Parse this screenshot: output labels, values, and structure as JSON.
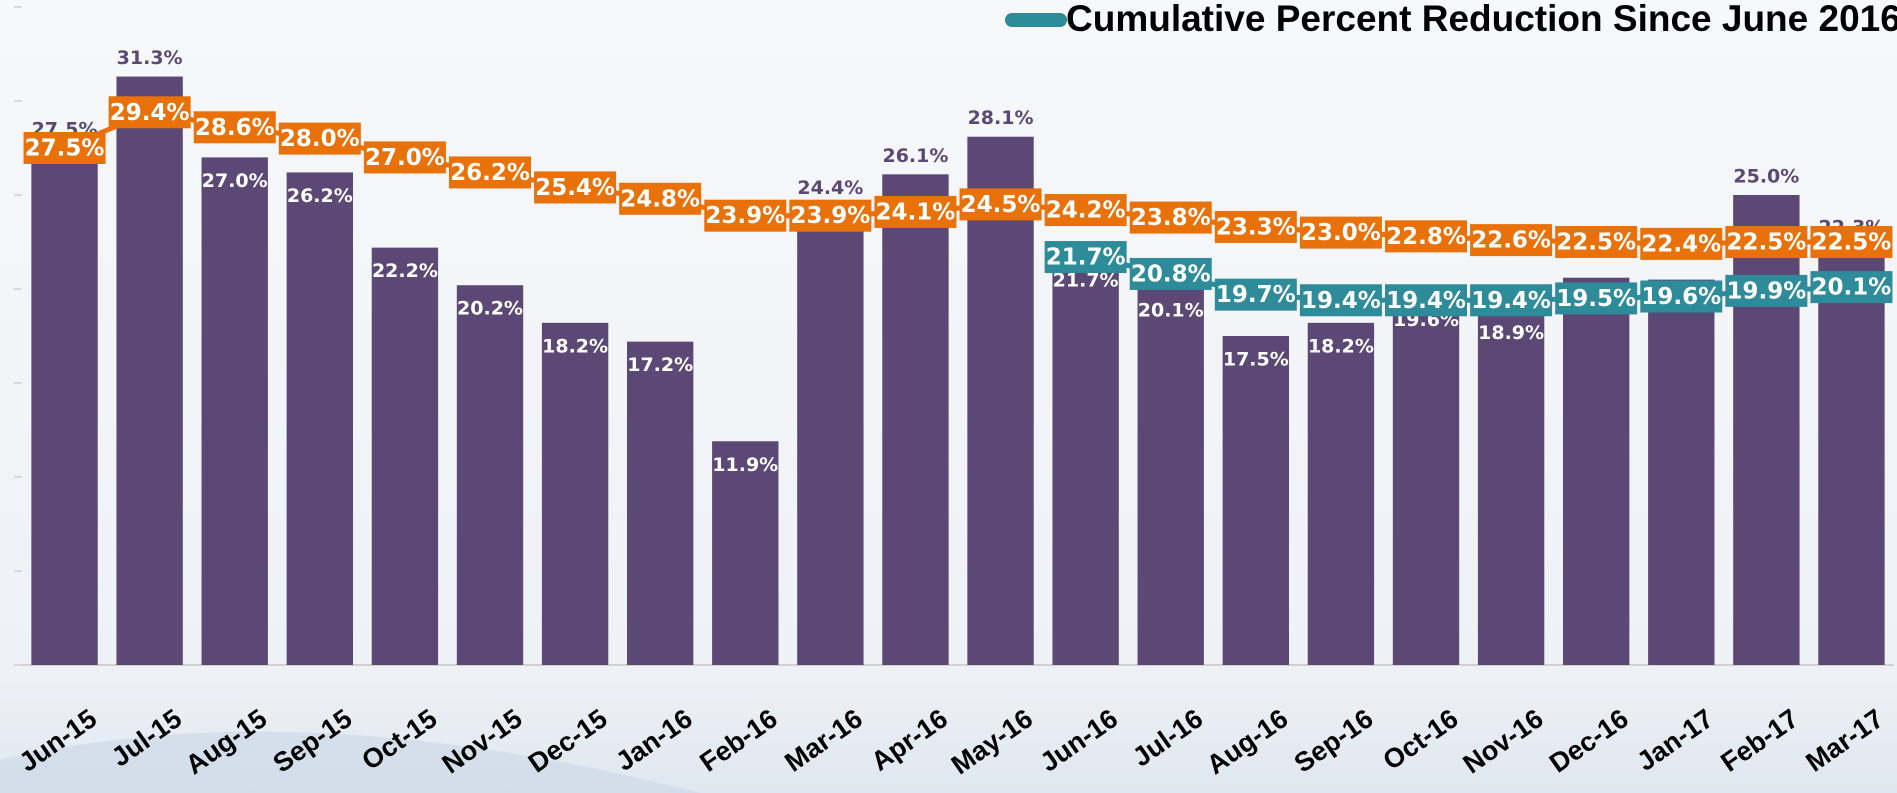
{
  "chart_data": {
    "type": "bar",
    "categories": [
      "Jun-15",
      "Jul-15",
      "Aug-15",
      "Sep-15",
      "Oct-15",
      "Nov-15",
      "Dec-15",
      "Jan-16",
      "Feb-16",
      "Mar-16",
      "Apr-16",
      "May-16",
      "Jun-16",
      "Jul-16",
      "Aug-16",
      "Sep-16",
      "Oct-16",
      "Nov-16",
      "Dec-16",
      "Jan-17",
      "Feb-17",
      "Mar-17"
    ],
    "values": [
      27.5,
      31.3,
      27.0,
      26.2,
      22.2,
      20.2,
      18.2,
      17.2,
      11.9,
      24.4,
      26.1,
      28.1,
      21.7,
      20.1,
      17.5,
      18.2,
      19.6,
      18.9,
      20.6,
      20.5,
      25.0,
      22.3
    ],
    "value_labels": [
      "27.5%",
      "31.3%",
      "27.0%",
      "26.2%",
      "22.2%",
      "20.2%",
      "18.2%",
      "17.2%",
      "11.9%",
      "24.4%",
      "26.1%",
      "28.1%",
      "21.7%",
      "20.1%",
      "17.5%",
      "18.2%",
      "19.6%",
      "18.9%",
      "20.6%",
      "20.5%",
      "25.0%",
      "22.3%"
    ],
    "color": "#5b4874",
    "lines": [
      {
        "color": "#e8710a",
        "values": [
          27.5,
          29.4,
          28.6,
          28.0,
          27.0,
          26.2,
          25.4,
          24.8,
          23.9,
          23.9,
          24.1,
          24.5,
          24.2,
          23.8,
          23.3,
          23.0,
          22.8,
          22.6,
          22.5,
          22.4,
          22.5,
          22.5
        ],
        "value_labels": [
          "27.5%",
          "29.4%",
          "28.6%",
          "28.0%",
          "27.0%",
          "26.2%",
          "25.4%",
          "24.8%",
          "23.9%",
          "23.9%",
          "24.1%",
          "24.5%",
          "24.2%",
          "23.8%",
          "23.3%",
          "23.0%",
          "22.8%",
          "22.6%",
          "22.5%",
          "22.4%",
          "22.5%",
          "22.5%"
        ]
      },
      {
        "name": "Cumulative Percent Reduction Since June 2016",
        "color": "#2e8b9a",
        "values": [
          null,
          null,
          null,
          null,
          null,
          null,
          null,
          null,
          null,
          null,
          null,
          null,
          21.7,
          20.8,
          19.7,
          19.4,
          19.4,
          19.4,
          19.5,
          19.6,
          19.9,
          20.1
        ],
        "value_labels": [
          null,
          null,
          null,
          null,
          null,
          null,
          null,
          null,
          null,
          null,
          null,
          null,
          "21.7%",
          "20.8%",
          "19.7%",
          "19.4%",
          "19.4%",
          "19.4%",
          "19.5%",
          "19.6%",
          "19.9%",
          "20.1%"
        ]
      }
    ],
    "ylim": [
      0,
      35
    ],
    "yticks": [
      0,
      5,
      10,
      15,
      20,
      25,
      30,
      35
    ]
  }
}
